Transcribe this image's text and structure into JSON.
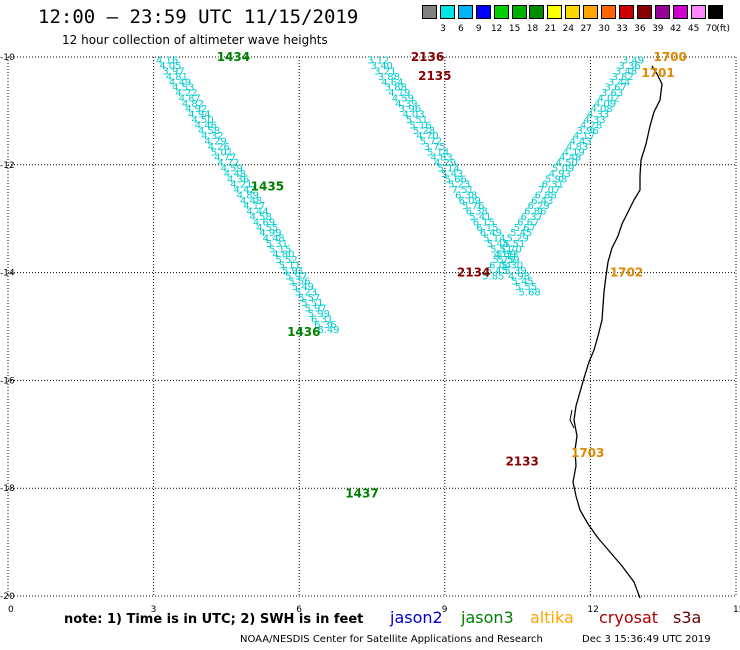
{
  "title": "12:00 – 23:59 UTC 11/15/2019",
  "subtitle": "12 hour collection of altimeter wave heights",
  "scale": {
    "labels": [
      "3",
      "6",
      "9",
      "12",
      "15",
      "18",
      "21",
      "24",
      "27",
      "30",
      "33",
      "36",
      "39",
      "42",
      "45",
      "70"
    ],
    "colors": [
      "#808080",
      "#00e5e5",
      "#00b5f5",
      "#0000ff",
      "#00cd00",
      "#00b000",
      "#008b00",
      "#ffff00",
      "#ffd700",
      "#ffa500",
      "#ff6600",
      "#cc0000",
      "#880000",
      "#990099",
      "#cc00cc",
      "#ff88ff",
      "#000000"
    ],
    "unit": "(ft)"
  },
  "axes": {
    "x_ticks": [
      "0",
      "3",
      "6",
      "9",
      "12",
      "15"
    ],
    "y_ticks": [
      "-10",
      "-12",
      "-14",
      "-16",
      "-18",
      "-20"
    ]
  },
  "colors": {
    "jason2": "#0000cc",
    "jason3": "#008000",
    "altika": "#ffa500",
    "cryosat": "#aa0000",
    "s3a": "#660000",
    "swh": "#00cccc"
  },
  "passes": [
    {
      "id": "1434",
      "color": "#008000",
      "pos": [
        4.3,
        -10
      ]
    },
    {
      "id": "1435",
      "color": "#008000",
      "pos": [
        5.0,
        -12.4
      ]
    },
    {
      "id": "1436",
      "color": "#008000",
      "pos": [
        5.75,
        -15.1
      ]
    },
    {
      "id": "1437",
      "color": "#008000",
      "pos": [
        6.95,
        -18.1
      ]
    },
    {
      "id": "2136",
      "color": "#880000",
      "pos": [
        8.3,
        -10
      ]
    },
    {
      "id": "2135",
      "color": "#880000",
      "pos": [
        8.45,
        -10.35
      ]
    },
    {
      "id": "2134",
      "color": "#880000",
      "pos": [
        9.25,
        -14.0
      ]
    },
    {
      "id": "2133",
      "color": "#880000",
      "pos": [
        10.25,
        -17.5
      ]
    },
    {
      "id": "1700",
      "color": "#dd8800",
      "pos": [
        13.3,
        -10
      ]
    },
    {
      "id": "1701",
      "color": "#dd8800",
      "pos": [
        13.05,
        -10.3
      ]
    },
    {
      "id": "1702",
      "color": "#dd8800",
      "pos": [
        12.4,
        -14.0
      ]
    },
    {
      "id": "1703",
      "color": "#dd8800",
      "pos": [
        11.6,
        -17.35
      ]
    }
  ],
  "tracks": [
    {
      "name": "jason3-track-1",
      "x0": 3.05,
      "y0": -10.05,
      "dx": 0.0665,
      "dy": -0.1,
      "values": [
        "4.16",
        "4.05",
        "3.97",
        "4.81",
        "4.49",
        "4.53",
        "4.22",
        "4.87",
        "4.82",
        "4.92",
        "4.94",
        "4.50",
        "4.46",
        "4.58",
        "4.32",
        "4.29",
        "4.26",
        "5.01",
        "4.77",
        "4.72",
        "4.59",
        "4.48",
        "4.36",
        "4.21",
        "4.42",
        "4.89",
        "4.48",
        "4.17",
        "4.44",
        "4.58",
        "4.69",
        "4.55",
        "4.99",
        "4.48",
        "5.31",
        "5.15",
        "4.80",
        "5.52",
        "5.11",
        "5.91",
        "5.97",
        "5.56",
        "5.49",
        "5.23",
        "5.57",
        "5.51",
        "5.97",
        "5.99",
        "6.31",
        "6.36",
        "6.49"
      ]
    },
    {
      "name": "cryosat-track",
      "x0": 7.4,
      "y0": -10.05,
      "dx": 0.0725,
      "dy": -0.1,
      "values": [
        "3.12",
        "3.40",
        "3.21",
        "3.88",
        "4.64",
        "3.88",
        "4.19",
        "4.59",
        "4.39",
        "3.96",
        "4.03",
        "5.51",
        "5.16",
        "5.28",
        "4.70",
        "5.72",
        "3.75",
        "5.14",
        "4.83",
        "4.29",
        "5.14",
        "5.43",
        "5.66",
        "5.23",
        "7.51",
        "6.38",
        "6.09",
        "5.76",
        "6.38",
        "5.41",
        "6.15",
        "6.15",
        "6.49",
        "5.14",
        "5.44",
        "5.11",
        "4.69",
        "5.59",
        "5.30",
        "5.39",
        "4.98",
        "5.45",
        "5.55",
        "5.68"
      ]
    },
    {
      "name": "altika-track",
      "x0": 12.65,
      "y0": -10.05,
      "dx": -0.072,
      "dy": -0.1,
      "values": [
        "3.49",
        "3.36",
        "3.48",
        "3.82",
        "3.44",
        "3.67",
        "3.63",
        "4.02",
        "4.09",
        "4.08",
        "4.33",
        "4.33",
        "4.28",
        "3.96",
        "4.17",
        "4.43",
        "4.83",
        "4.19",
        "4.48",
        "4.50",
        "5.09",
        "4.93",
        "5.98",
        "6.31",
        "7.07",
        "6.88",
        "6.43",
        "6.29",
        "6.86",
        "6.37",
        "6.67",
        "5.67",
        "5.45",
        "5.29",
        "5.51",
        "5.70",
        "5.33",
        "5.75",
        "6.04",
        "6.45",
        "5.85"
      ]
    }
  ],
  "note": "note:  1) Time is in UTC;  2) SWH is in feet",
  "legend": [
    {
      "name": "jason2",
      "color": "#0000cc"
    },
    {
      "name": "jason3",
      "color": "#008000"
    },
    {
      "name": "altika",
      "color": "#ffa500"
    },
    {
      "name": "cryosat",
      "color": "#aa0000"
    },
    {
      "name": "s3a",
      "color": "#660000"
    }
  ],
  "credit": "NOAA/NESDIS Center for Satellite Applications and Research",
  "timestamp": "Dec  3 15:36:49 UTC 2019"
}
